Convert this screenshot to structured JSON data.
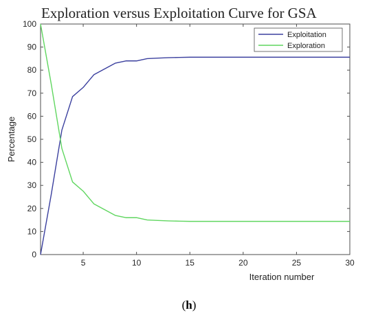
{
  "chart_data": {
    "type": "line",
    "title": "Exploration versus  Exploitation Curve for  GSA",
    "xlabel": "Iteration number",
    "ylabel": "Percentage",
    "xlim": [
      1,
      30
    ],
    "ylim": [
      0,
      100
    ],
    "xticks": [
      5,
      10,
      15,
      20,
      25,
      30
    ],
    "yticks": [
      0,
      10,
      20,
      30,
      40,
      50,
      60,
      70,
      80,
      90,
      100
    ],
    "grid": false,
    "legend_position": "top-right",
    "x": [
      1,
      2,
      3,
      4,
      5,
      6,
      7,
      8,
      9,
      10,
      11,
      12,
      13,
      14,
      15,
      16,
      17,
      18,
      19,
      20,
      21,
      22,
      23,
      24,
      25,
      26,
      27,
      28,
      29,
      30
    ],
    "series": [
      {
        "name": "Exploitation",
        "color": "#3a3f9e",
        "values": [
          0,
          26,
          54,
          68.5,
          72.5,
          78,
          80.5,
          83,
          84,
          84,
          85,
          85.2,
          85.4,
          85.5,
          85.6,
          85.6,
          85.6,
          85.6,
          85.6,
          85.6,
          85.6,
          85.6,
          85.6,
          85.6,
          85.6,
          85.6,
          85.6,
          85.6,
          85.6,
          85.6
        ]
      },
      {
        "name": "Exploration",
        "color": "#5fd65f",
        "values": [
          100,
          74,
          46,
          31.5,
          27.5,
          22,
          19.5,
          17,
          16,
          16,
          15,
          14.8,
          14.6,
          14.5,
          14.4,
          14.4,
          14.4,
          14.4,
          14.4,
          14.4,
          14.4,
          14.4,
          14.4,
          14.4,
          14.4,
          14.4,
          14.4,
          14.4,
          14.4,
          14.4
        ]
      }
    ]
  },
  "caption": {
    "prefix": "(",
    "letter": "h",
    "suffix": ")"
  }
}
